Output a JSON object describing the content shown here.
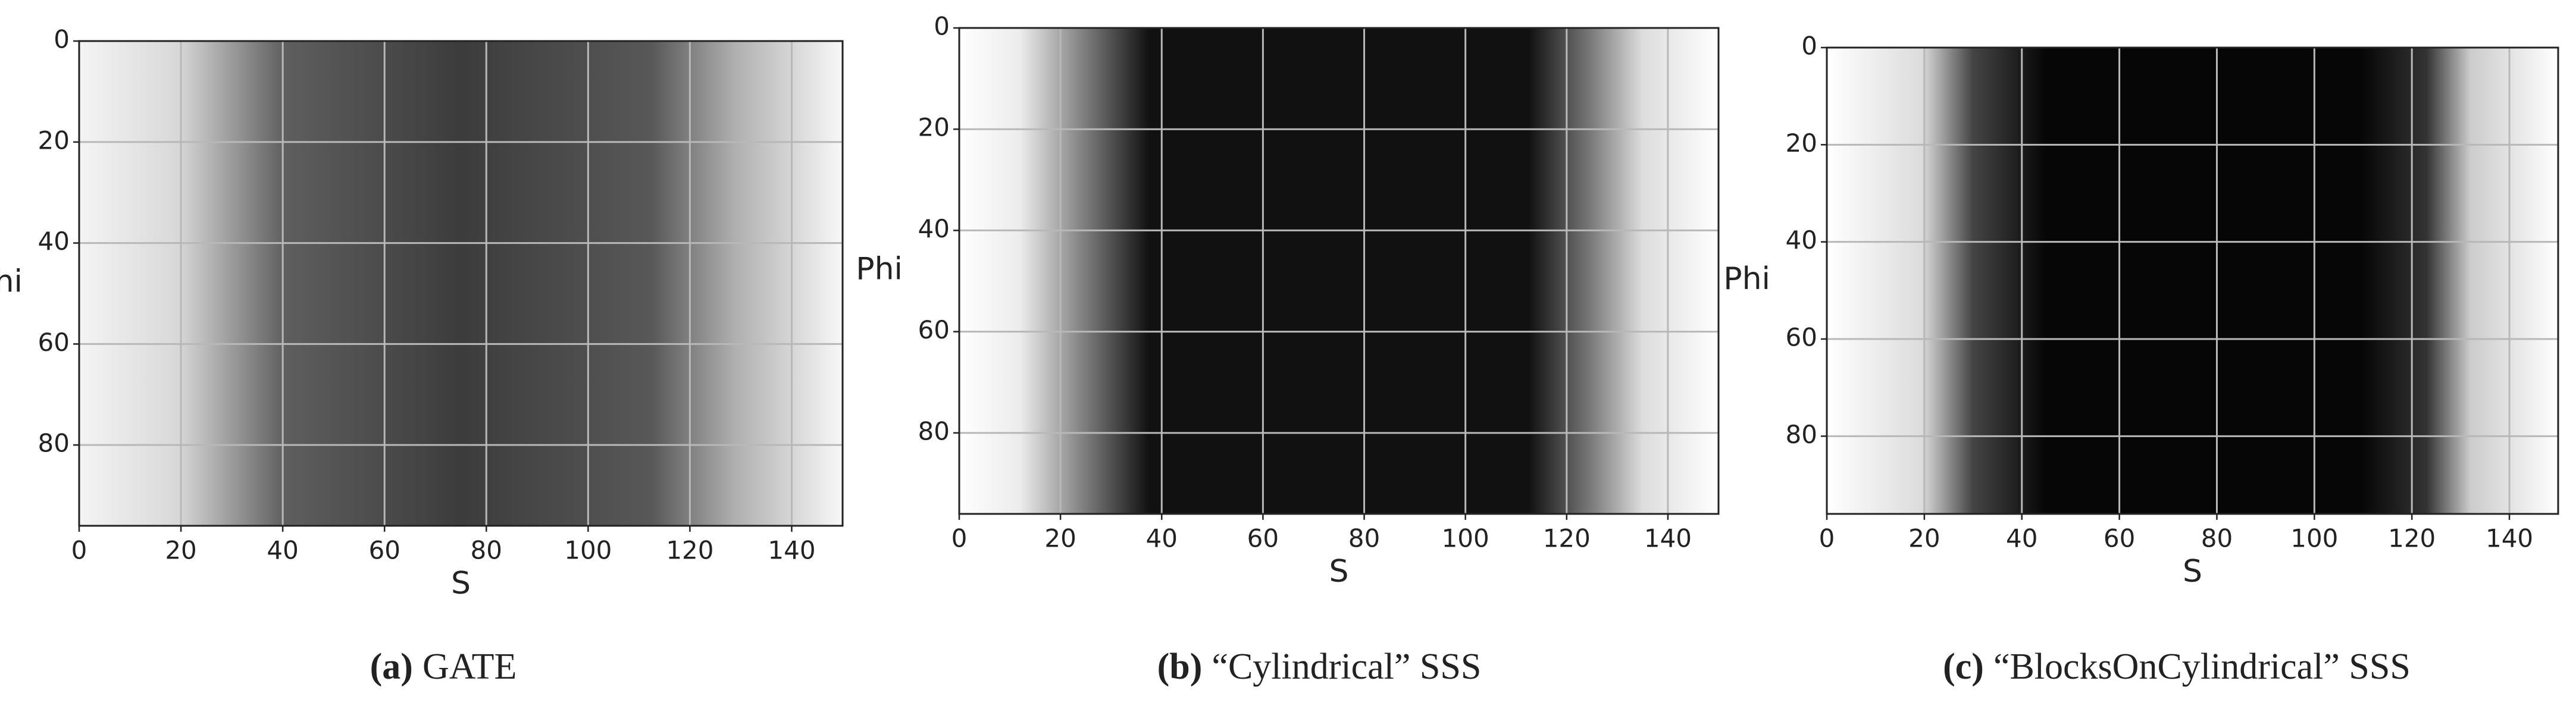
{
  "chart_data": [
    {
      "type": "image",
      "xlabel": "S",
      "ylabel": "Phi",
      "xlim": [
        0,
        150
      ],
      "ylim": [
        0,
        96
      ],
      "xticks": [
        0,
        20,
        40,
        60,
        80,
        100,
        120,
        140
      ],
      "yticks": [
        0,
        20,
        40,
        60,
        80
      ],
      "grid": true,
      "caption_label": "(a)",
      "caption": "GATE"
    },
    {
      "type": "image",
      "xlabel": "S",
      "ylabel": "Phi",
      "xlim": [
        0,
        150
      ],
      "ylim": [
        0,
        96
      ],
      "xticks": [
        0,
        20,
        40,
        60,
        80,
        100,
        120,
        140
      ],
      "yticks": [
        0,
        20,
        40,
        60,
        80
      ],
      "grid": true,
      "caption_label": "(b)",
      "caption": "“Cylindrical” SSS"
    },
    {
      "type": "image",
      "xlabel": "S",
      "ylabel": "Phi",
      "xlim": [
        0,
        150
      ],
      "ylim": [
        0,
        96
      ],
      "xticks": [
        0,
        20,
        40,
        60,
        80,
        100,
        120,
        140
      ],
      "yticks": [
        0,
        20,
        40,
        60,
        80
      ],
      "grid": true,
      "caption_label": "(c)",
      "caption": "“BlocksOnCylindrical” SSS"
    }
  ]
}
